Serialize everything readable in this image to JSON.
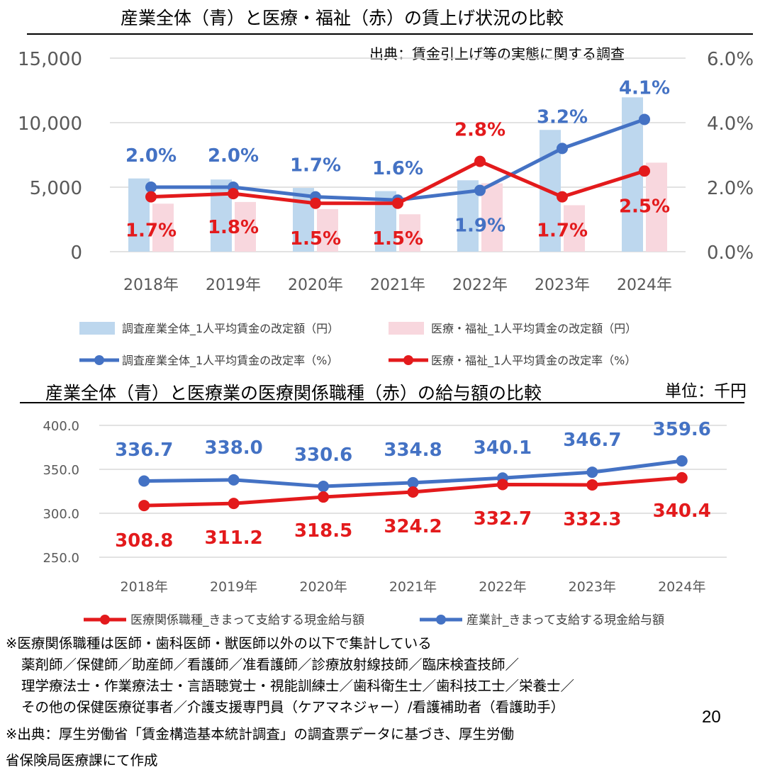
{
  "chart_data": [
    {
      "type": "bar",
      "title": "産業全体（青）と医療・福祉（赤）の賃上げ状況の比較",
      "source_note": "出典：賃金引上げ等の実態に関する調査",
      "categories": [
        "2018年",
        "2019年",
        "2020年",
        "2021年",
        "2022年",
        "2023年",
        "2024年"
      ],
      "ylim": [
        0,
        15000
      ],
      "y_ticks": [
        "0",
        "5,000",
        "10,000",
        "15,000"
      ],
      "y2lim": [
        0,
        6.0
      ],
      "y2_ticks": [
        "0.0%",
        "2.0%",
        "4.0%",
        "6.0%"
      ],
      "grid": true,
      "legend_position": "bottom",
      "series": [
        {
          "name": "調査産業全体_1人平均賃金の改定額（円）",
          "type": "bar",
          "axis": "left",
          "color": "#bdd7ee",
          "values": [
            5675,
            5592,
            4940,
            4694,
            5534,
            9437,
            11961
          ]
        },
        {
          "name": "医療・福祉_1人平均賃金の改定額（円）",
          "type": "bar",
          "axis": "left",
          "color": "#f8d7de",
          "values": [
            3720,
            3850,
            3300,
            2900,
            5300,
            3600,
            6900
          ]
        },
        {
          "name": "調査産業全体_1人平均賃金の改定率（%）",
          "type": "line",
          "axis": "right",
          "color": "#4472c4",
          "values": [
            2.0,
            2.0,
            1.7,
            1.6,
            1.9,
            3.2,
            4.1
          ],
          "labels": [
            "2.0%",
            "2.0%",
            "1.7%",
            "1.6%",
            "1.9%",
            "3.2%",
            "4.1%"
          ]
        },
        {
          "name": "医療・福祉_1人平均賃金の改定率（%）",
          "type": "line",
          "axis": "right",
          "color": "#e31a1c",
          "values": [
            1.7,
            1.8,
            1.5,
            1.5,
            2.8,
            1.7,
            2.5
          ],
          "labels": [
            "1.7%",
            "1.8%",
            "1.5%",
            "1.5%",
            "2.8%",
            "1.7%",
            "2.5%"
          ]
        }
      ]
    },
    {
      "type": "line",
      "title": "産業全体（青）と医療業の医療関係職種（赤）の給与額の比較",
      "unit_note": "単位：千円",
      "categories": [
        "2018年",
        "2019年",
        "2020年",
        "2021年",
        "2022年",
        "2023年",
        "2024年"
      ],
      "ylim": [
        250,
        400
      ],
      "y_ticks": [
        "250.0",
        "300.0",
        "350.0",
        "400.0"
      ],
      "grid": true,
      "legend_position": "bottom",
      "series": [
        {
          "name": "医療関係職種_きまって支給する現金給与額",
          "color": "#e31a1c",
          "values": [
            308.8,
            311.2,
            318.5,
            324.2,
            332.7,
            332.3,
            340.4
          ],
          "labels": [
            "308.8",
            "311.2",
            "318.5",
            "324.2",
            "332.7",
            "332.3",
            "340.4"
          ]
        },
        {
          "name": "産業計_きまって支給する現金給与額",
          "color": "#4472c4",
          "values": [
            336.7,
            338.0,
            330.6,
            334.8,
            340.1,
            346.7,
            359.6
          ],
          "labels": [
            "336.7",
            "338.0",
            "330.6",
            "334.8",
            "340.1",
            "346.7",
            "359.6"
          ]
        }
      ]
    }
  ],
  "footer": {
    "line1": "※医療関係職種は医師・歯科医師・獣医師以外の以下で集計している",
    "line2": "薬剤師／保健師／助産師／看護師／准看護師／診療放射線技師／臨床検査技師／",
    "line3": "理学療法士・作業療法士・言語聴覚士・視能訓練士／歯科衛生士／歯科技工士／栄養士／",
    "line4": "その他の保健医療従事者／介護支援専門員（ケアマネジャー）/看護補助者（看護助手）",
    "line5": "※出典：厚生労働省「賃金構造基本統計調査」の調査票データに基づき、厚生労働",
    "line6": "省保険局医療課にて作成"
  },
  "page_number": "20"
}
